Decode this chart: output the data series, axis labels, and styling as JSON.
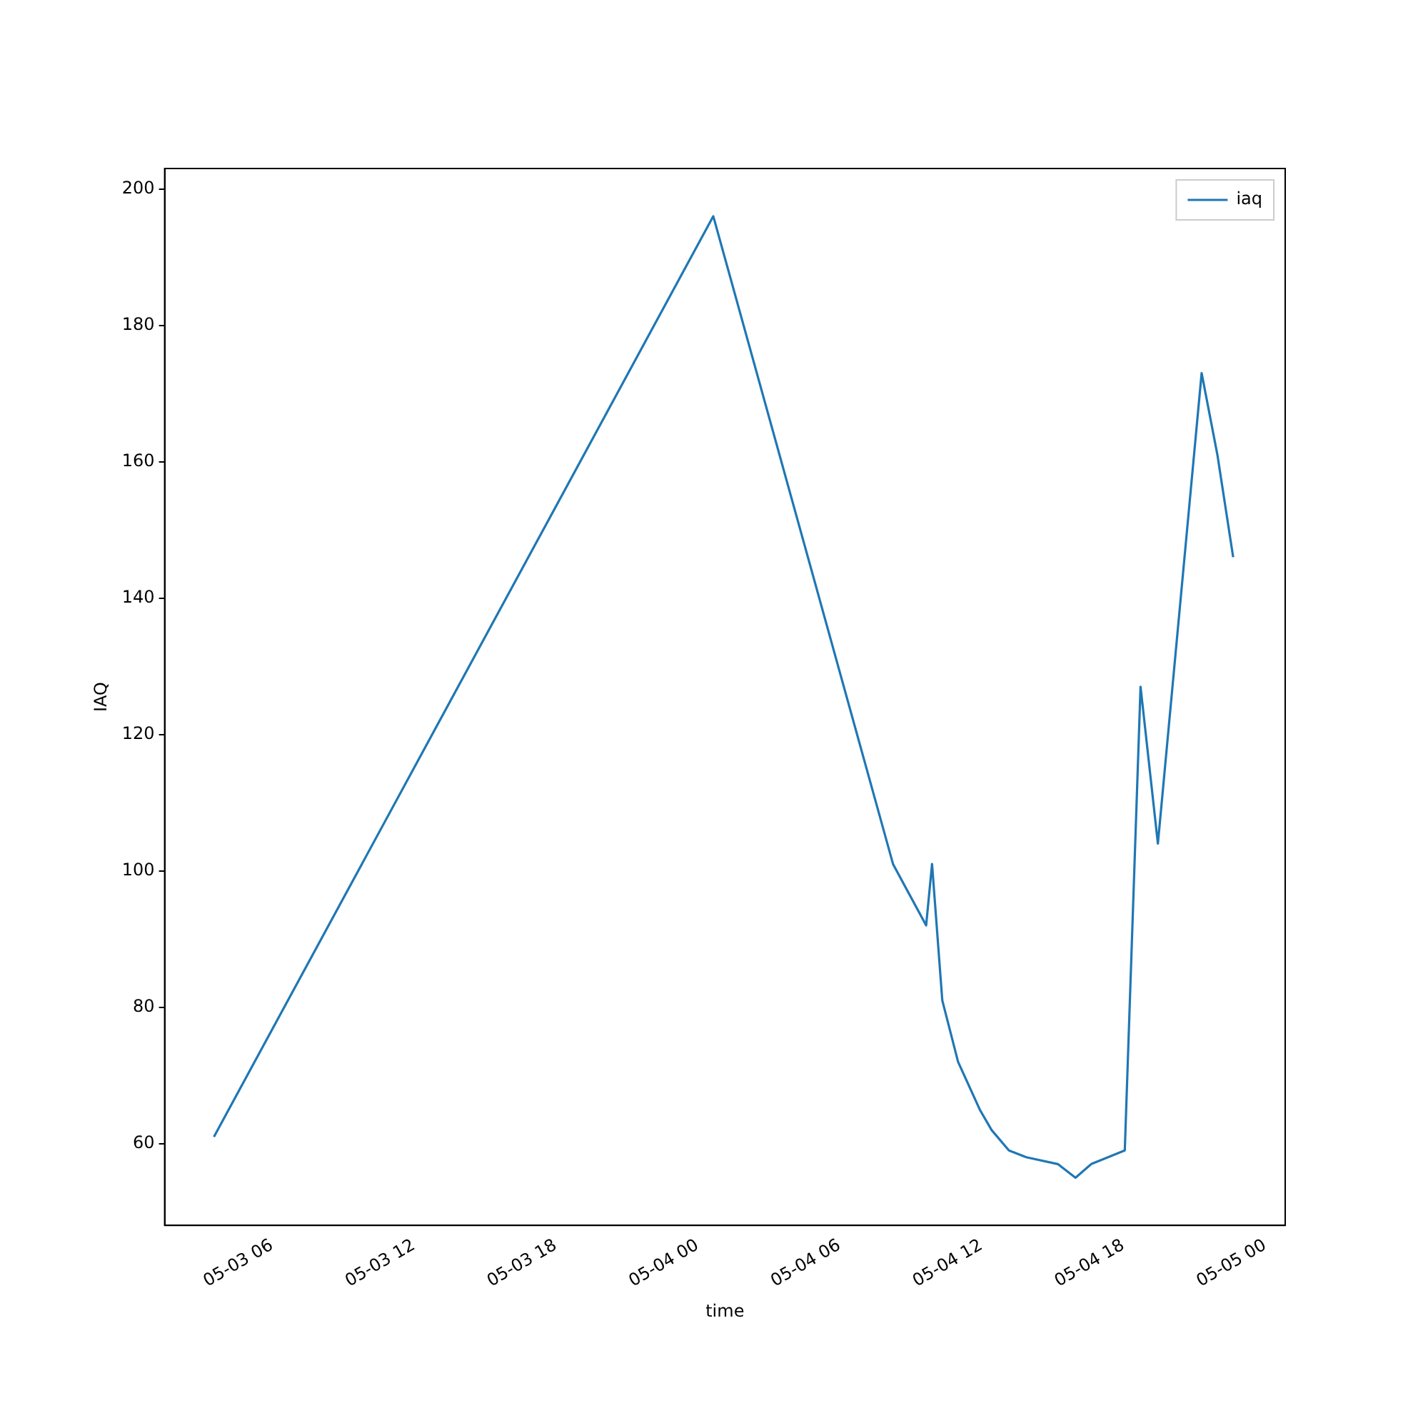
{
  "chart_data": {
    "type": "line",
    "xlabel": "time",
    "ylabel": "IAQ",
    "legend": "top right",
    "grid": false,
    "x": [
      "--05-03T03:33",
      "--05-04T00:40",
      "--05-04T08:16",
      "--05-04T09:40",
      "--05-04T09:55",
      "--05-04T10:21",
      "--05-04T11:01",
      "--05-04T11:56",
      "--05-04T12:26",
      "--05-04T13:10",
      "--05-04T13:54",
      "--05-04T15:14",
      "--05-04T15:59",
      "--05-04T16:39",
      "--05-04T18:04",
      "--05-04T18:44",
      "--05-04T19:28",
      "--05-04T21:19",
      "--05-04T21:59",
      "--05-04T22:39"
    ],
    "series": [
      {
        "name": "iaq",
        "color": "#1f77b4",
        "values": [
          61,
          196,
          101,
          92,
          101,
          81,
          72,
          65,
          62,
          59,
          58,
          57,
          55,
          57,
          59,
          127,
          104,
          173,
          161,
          146
        ]
      }
    ],
    "xlim": [
      "--05-03T01:28",
      "--05-05T00:51"
    ],
    "xticks": [
      {
        "value": "--05-03T06:00",
        "label": "05-03 06"
      },
      {
        "value": "--05-03T12:00",
        "label": "05-03 12"
      },
      {
        "value": "--05-03T18:00",
        "label": "05-03 18"
      },
      {
        "value": "--05-04T00:00",
        "label": "05-04 00"
      },
      {
        "value": "--05-04T06:00",
        "label": "05-04 06"
      },
      {
        "value": "--05-04T12:00",
        "label": "05-04 12"
      },
      {
        "value": "--05-04T18:00",
        "label": "05-04 18"
      },
      {
        "value": "--05-05T00:00",
        "label": "05-05 00"
      }
    ],
    "ylim": [
      48,
      203
    ],
    "yticks": [
      60,
      80,
      100,
      120,
      140,
      160,
      180,
      200
    ],
    "marker": "none",
    "line_style": "solid"
  }
}
